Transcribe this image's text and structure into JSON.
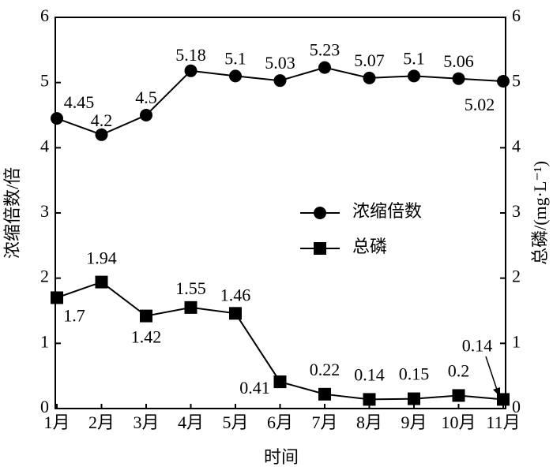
{
  "chart_data": {
    "type": "line",
    "x_label": "时间",
    "y_label": "浓缩倍数/倍",
    "y2_label": "总磷/(mg·L⁻¹)",
    "categories": [
      "1月",
      "2月",
      "3月",
      "4月",
      "5月",
      "6月",
      "7月",
      "8月",
      "9月",
      "10月",
      "11月"
    ],
    "series": [
      {
        "name": "浓缩倍数",
        "color": "#000000",
        "marker": "circle",
        "axis": "y",
        "values": [
          4.45,
          4.2,
          4.5,
          5.18,
          5.1,
          5.03,
          5.23,
          5.07,
          5.1,
          5.06,
          5.02
        ]
      },
      {
        "name": "总磷",
        "color": "#000000",
        "marker": "square",
        "axis": "y2",
        "values": [
          1.7,
          1.94,
          1.42,
          1.55,
          1.46,
          0.41,
          0.22,
          0.14,
          0.15,
          0.2,
          0.14
        ]
      }
    ],
    "ylim": [
      0,
      6
    ],
    "yticks": [
      0,
      1,
      2,
      3,
      4,
      5,
      6
    ],
    "y2lim": [
      0,
      6
    ],
    "y2ticks": [
      0,
      1,
      2,
      3,
      4,
      5,
      6
    ],
    "grid": false,
    "legend": "center-right"
  }
}
